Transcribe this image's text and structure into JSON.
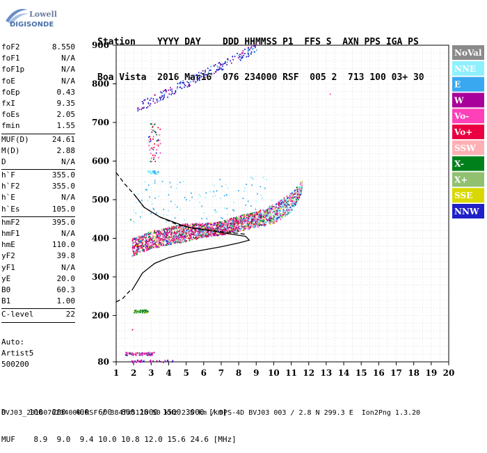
{
  "logo": {
    "line1": "Lowell",
    "line2": "DIGISONDE"
  },
  "header": {
    "line1": "Station    YYYY DAY    DDD HHMMSS P1  FFS S  AXN PPS IGA PS",
    "line2": "Boa Vista  2016 Mar16  076 234000 RSF  005 2  713 100 03+ 30"
  },
  "params": [
    {
      "label": "foF2",
      "value": "8.550"
    },
    {
      "label": "foF1",
      "value": "N/A"
    },
    {
      "label": "foF1p",
      "value": "N/A"
    },
    {
      "label": "foE",
      "value": "N/A"
    },
    {
      "label": "foEp",
      "value": "0.43"
    },
    {
      "label": "fxI",
      "value": "9.35"
    },
    {
      "label": "foEs",
      "value": "2.05"
    },
    {
      "label": "fmin",
      "value": "1.55"
    },
    {
      "sep": true
    },
    {
      "label": "MUF(D)",
      "value": "24.61"
    },
    {
      "label": "M(D)",
      "value": "2.88"
    },
    {
      "label": "D",
      "value": "N/A"
    },
    {
      "sep": true
    },
    {
      "label": "h`F",
      "value": "355.0"
    },
    {
      "label": "h`F2",
      "value": "355.0"
    },
    {
      "label": "h`E",
      "value": "N/A"
    },
    {
      "label": "h`Es",
      "value": "105.0"
    },
    {
      "sep": true
    },
    {
      "label": "hmF2",
      "value": "395.0"
    },
    {
      "label": "hmF1",
      "value": "N/A"
    },
    {
      "label": "hmE",
      "value": "110.0"
    },
    {
      "label": "yF2",
      "value": "39.8"
    },
    {
      "label": "yF1",
      "value": "N/A"
    },
    {
      "label": "yE",
      "value": "20.0"
    },
    {
      "label": "B0",
      "value": "60.3"
    },
    {
      "label": "B1",
      "value": "1.00"
    },
    {
      "sep": true
    },
    {
      "label": "C-level",
      "value": "22"
    },
    {
      "sep": true
    }
  ],
  "auto": {
    "line1": "Auto:",
    "line2": "Artist5",
    "line3": "500200"
  },
  "bottom": {
    "d_row": "D     100  200  400  600  800 1000 1500 3000 [km]",
    "muf_row": "MUF    8.9  9.0  9.4 10.0 10.8 12.0 15.6 24.6 [MHz]",
    "footer": "BVJ03_2016076234000.RSF / 384fx512h 50 kHz 2.5 km / DPS-4D BVJ03 003 / 2.8 N 299.3 E  Ion2Png 1.3.20"
  },
  "chart_data": {
    "type": "scatter",
    "title": "",
    "xlabel": "",
    "ylabel": "",
    "xlim": [
      1,
      20
    ],
    "ylim": [
      80,
      900
    ],
    "x_ticks": [
      1,
      2,
      3,
      4,
      5,
      6,
      7,
      8,
      9,
      10,
      11,
      12,
      13,
      14,
      15,
      16,
      17,
      18,
      19,
      20
    ],
    "y_ticks": [
      80,
      200,
      300,
      400,
      500,
      600,
      700,
      800,
      900
    ],
    "grid": true,
    "legend_position": "right",
    "legend": [
      {
        "name": "NoVal",
        "color": "#8a8a8a",
        "text": "#ffffff"
      },
      {
        "name": "NNE",
        "color": "#8ef0ff",
        "text": "#ffffff"
      },
      {
        "name": "E",
        "color": "#3aa8f0",
        "text": "#ffffff"
      },
      {
        "name": "W",
        "color": "#a8009a",
        "text": "#ffffff"
      },
      {
        "name": "Vo-",
        "color": "#ff40b8",
        "text": "#ffffff"
      },
      {
        "name": "Vo+",
        "color": "#ea0040",
        "text": "#ffffff"
      },
      {
        "name": "SSW",
        "color": "#ffb0b4",
        "text": "#ffffff"
      },
      {
        "name": "X-",
        "color": "#00801a",
        "text": "#ffffff"
      },
      {
        "name": "X+",
        "color": "#90c070",
        "text": "#ffffff"
      },
      {
        "name": "SSE",
        "color": "#d8d800",
        "text": "#ffffff"
      },
      {
        "name": "NNW",
        "color": "#2020c8",
        "text": "#ffffff"
      }
    ],
    "traces": [
      {
        "name": "F2 trace lower edge",
        "x": [
          1.9,
          3,
          4,
          5,
          6,
          7,
          8,
          9,
          10,
          11,
          11.6
        ],
        "y": [
          355,
          375,
          385,
          393,
          405,
          410,
          420,
          430,
          440,
          470,
          520
        ]
      },
      {
        "name": "F2 trace upper edge",
        "x": [
          1.9,
          3,
          4,
          5,
          6,
          7,
          8,
          9,
          10,
          11,
          11.6
        ],
        "y": [
          400,
          420,
          430,
          440,
          440,
          445,
          460,
          470,
          490,
          520,
          550
        ]
      },
      {
        "name": "Es cluster",
        "x": [
          2.0,
          2.8
        ],
        "y": [
          210,
          215
        ]
      },
      {
        "name": "Multi-hop 1",
        "x": [
          2.8,
          3.4
        ],
        "y": [
          570,
          580
        ]
      },
      {
        "name": "Multi-hop 2",
        "x": [
          2.2,
          9.0
        ],
        "y": [
          740,
          895
        ]
      },
      {
        "name": "Low Es",
        "x": [
          1.5,
          3.2
        ],
        "y": [
          100,
          105
        ]
      }
    ],
    "profile_solid": {
      "x": [
        1.9,
        2.5,
        3.2,
        4,
        5,
        6,
        7,
        8,
        8.6,
        8.4,
        7,
        5,
        3.5,
        2.6,
        2.0
      ],
      "y": [
        265,
        310,
        335,
        350,
        362,
        370,
        378,
        388,
        395,
        405,
        415,
        430,
        455,
        480,
        515
      ]
    },
    "profile_dashed_upper": {
      "x": [
        1.0,
        1.5,
        2.0,
        2.6,
        3.5,
        4.5,
        5.5,
        6.5,
        7.5,
        8.5
      ],
      "y": [
        570,
        540,
        515,
        480,
        455,
        435,
        425,
        420,
        415,
        410
      ]
    },
    "profile_dashed_lower": {
      "x": [
        1.0,
        1.4,
        1.8,
        1.9
      ],
      "y": [
        235,
        245,
        265,
        265
      ]
    }
  }
}
